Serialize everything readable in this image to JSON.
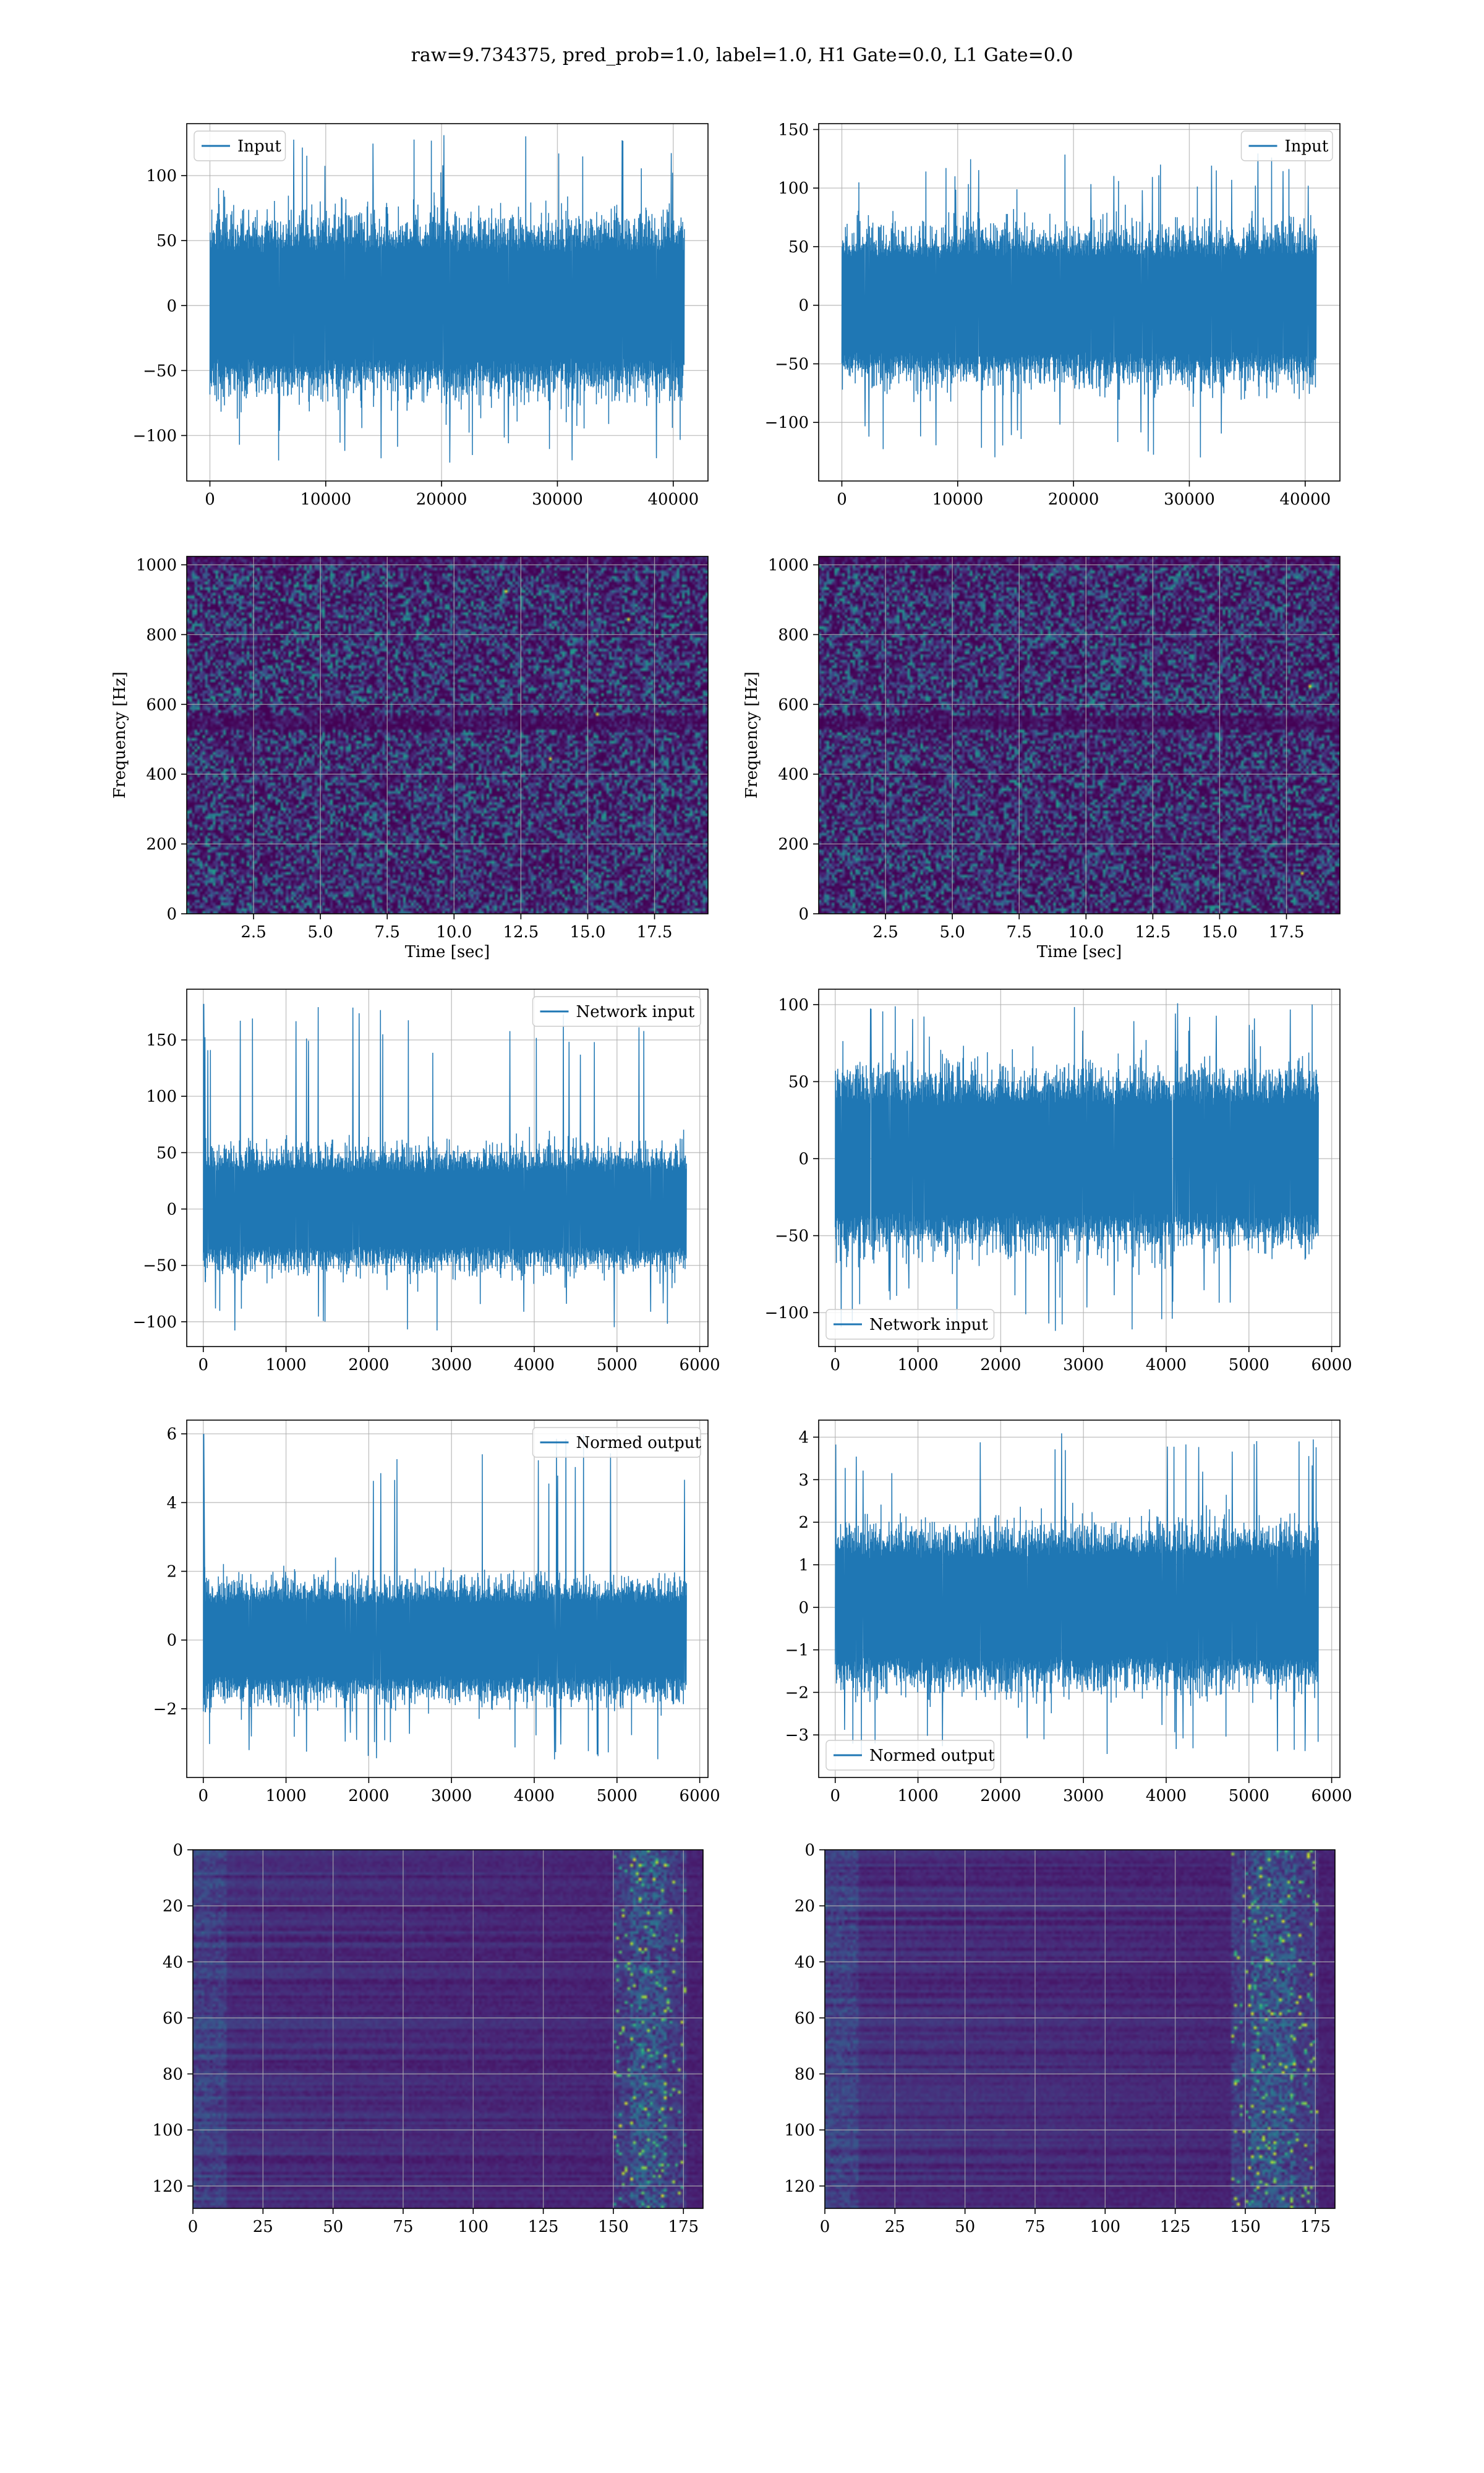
{
  "figure": {
    "title": "raw=9.734375, pred_prob=1.0, label=1.0, H1 Gate=0.0, L1 Gate=0.0",
    "colors": {
      "line": "#1f77b4",
      "grid": "#b0b0b0",
      "viridis_low": "#440154",
      "viridis_mid": "#21918c",
      "viridis_high": "#fde725"
    }
  },
  "chart_data": [
    {
      "id": "input-h1",
      "type": "line",
      "title": "",
      "xlabel": "",
      "ylabel": "",
      "legend": {
        "label": "Input",
        "placement": "upper-left"
      },
      "xlim": [
        -2000,
        43000
      ],
      "ylim": [
        -135,
        140
      ],
      "xticks": [
        0,
        10000,
        20000,
        30000,
        40000
      ],
      "yticks": [
        -100,
        -50,
        0,
        50,
        100
      ],
      "signal": {
        "x_range": [
          0,
          40960
        ],
        "amplitude": 82,
        "peak_max": 133,
        "peak_min": -122
      },
      "grid": true
    },
    {
      "id": "input-l1",
      "type": "line",
      "title": "",
      "xlabel": "",
      "ylabel": "",
      "legend": {
        "label": "Input",
        "placement": "upper-right"
      },
      "xlim": [
        -2000,
        43000
      ],
      "ylim": [
        -150,
        155
      ],
      "xticks": [
        0,
        10000,
        20000,
        30000,
        40000
      ],
      "yticks": [
        -100,
        -50,
        0,
        50,
        100,
        150
      ],
      "signal": {
        "x_range": [
          0,
          40960
        ],
        "amplitude": 80,
        "peak_max": 130,
        "peak_min": -135
      },
      "grid": true
    },
    {
      "id": "spectrogram-h1",
      "type": "heatmap",
      "title": "",
      "xlabel": "Time [sec]",
      "ylabel": "Frequency [Hz]",
      "xlim": [
        0,
        19.5
      ],
      "ylim": [
        0,
        1024
      ],
      "xticks": [
        "2.5",
        "5.0",
        "7.5",
        "10.0",
        "12.5",
        "15.0",
        "17.5"
      ],
      "xtick_values": [
        2.5,
        5.0,
        7.5,
        10.0,
        12.5,
        15.0,
        17.5
      ],
      "yticks": [
        0,
        200,
        400,
        600,
        800,
        1000
      ],
      "colormap": "viridis",
      "hot_spots": [
        [
          11.9,
          930
        ],
        [
          15.3,
          580
        ],
        [
          13.6,
          450
        ],
        [
          16.5,
          850
        ]
      ],
      "grid": true
    },
    {
      "id": "spectrogram-l1",
      "type": "heatmap",
      "title": "",
      "xlabel": "Time [sec]",
      "ylabel": "Frequency [Hz]",
      "xlim": [
        0,
        19.5
      ],
      "ylim": [
        0,
        1024
      ],
      "xticks": [
        "2.5",
        "5.0",
        "7.5",
        "10.0",
        "12.5",
        "15.0",
        "17.5"
      ],
      "xtick_values": [
        2.5,
        5.0,
        7.5,
        10.0,
        12.5,
        15.0,
        17.5
      ],
      "yticks": [
        0,
        200,
        400,
        600,
        800,
        1000
      ],
      "colormap": "viridis",
      "hot_spots": [
        [
          18.0,
          120
        ],
        [
          18.3,
          660
        ]
      ],
      "grid": true
    },
    {
      "id": "network-input-h1",
      "type": "line",
      "title": "",
      "xlabel": "",
      "ylabel": "",
      "legend": {
        "label": "Network input",
        "placement": "upper-right"
      },
      "xlim": [
        -200,
        6100
      ],
      "ylim": [
        -122,
        195
      ],
      "xticks": [
        0,
        1000,
        2000,
        3000,
        4000,
        5000,
        6000
      ],
      "yticks": [
        -100,
        -50,
        0,
        50,
        100,
        150
      ],
      "signal": {
        "x_range": [
          0,
          5840
        ],
        "amplitude": 65,
        "peak_max": 182,
        "peak_min": -108,
        "spike_x": 5
      },
      "grid": true
    },
    {
      "id": "network-input-l1",
      "type": "line",
      "title": "",
      "xlabel": "",
      "ylabel": "",
      "legend": {
        "label": "Network input",
        "placement": "lower-left"
      },
      "xlim": [
        -200,
        6100
      ],
      "ylim": [
        -122,
        110
      ],
      "xticks": [
        0,
        1000,
        2000,
        3000,
        4000,
        5000,
        6000
      ],
      "yticks": [
        -100,
        -50,
        0,
        50,
        100
      ],
      "signal": {
        "x_range": [
          0,
          5840
        ],
        "amplitude": 70,
        "peak_max": 102,
        "peak_min": -112
      },
      "grid": true
    },
    {
      "id": "normed-output-h1",
      "type": "line",
      "title": "",
      "xlabel": "",
      "ylabel": "",
      "legend": {
        "label": "Normed output",
        "placement": "upper-right"
      },
      "xlim": [
        -200,
        6100
      ],
      "ylim": [
        -4.0,
        6.4
      ],
      "xticks": [
        0,
        1000,
        2000,
        3000,
        4000,
        5000,
        6000
      ],
      "yticks": [
        -2,
        0,
        2,
        4,
        6
      ],
      "signal": {
        "x_range": [
          0,
          5840
        ],
        "amplitude": 2.1,
        "peak_max": 6.0,
        "peak_min": -3.5,
        "spike_x": 5
      },
      "grid": true
    },
    {
      "id": "normed-output-l1",
      "type": "line",
      "title": "",
      "xlabel": "",
      "ylabel": "",
      "legend": {
        "label": "Normed output",
        "placement": "lower-left"
      },
      "xlim": [
        -200,
        6100
      ],
      "ylim": [
        -4.0,
        4.4
      ],
      "xticks": [
        0,
        1000,
        2000,
        3000,
        4000,
        5000,
        6000
      ],
      "yticks": [
        -3,
        -2,
        -1,
        0,
        1,
        2,
        3,
        4
      ],
      "signal": {
        "x_range": [
          0,
          5840
        ],
        "amplitude": 2.3,
        "peak_max": 4.1,
        "peak_min": -3.6
      },
      "grid": true
    },
    {
      "id": "feature-map-h1",
      "type": "heatmap",
      "title": "",
      "xlabel": "",
      "ylabel": "",
      "xlim": [
        0,
        182
      ],
      "ylim": [
        128,
        0
      ],
      "xticks": [
        0,
        25,
        50,
        75,
        100,
        125,
        150,
        175
      ],
      "yticks": [
        0,
        20,
        40,
        60,
        80,
        100,
        120
      ],
      "colormap": "viridis",
      "active_columns": [
        150,
        175
      ],
      "grid": true
    },
    {
      "id": "feature-map-l1",
      "type": "heatmap",
      "title": "",
      "xlabel": "",
      "ylabel": "",
      "xlim": [
        0,
        182
      ],
      "ylim": [
        128,
        0
      ],
      "xticks": [
        0,
        25,
        50,
        75,
        100,
        125,
        150,
        175
      ],
      "yticks": [
        0,
        20,
        40,
        60,
        80,
        100,
        120
      ],
      "colormap": "viridis",
      "active_columns": [
        145,
        175
      ],
      "grid": true
    }
  ]
}
